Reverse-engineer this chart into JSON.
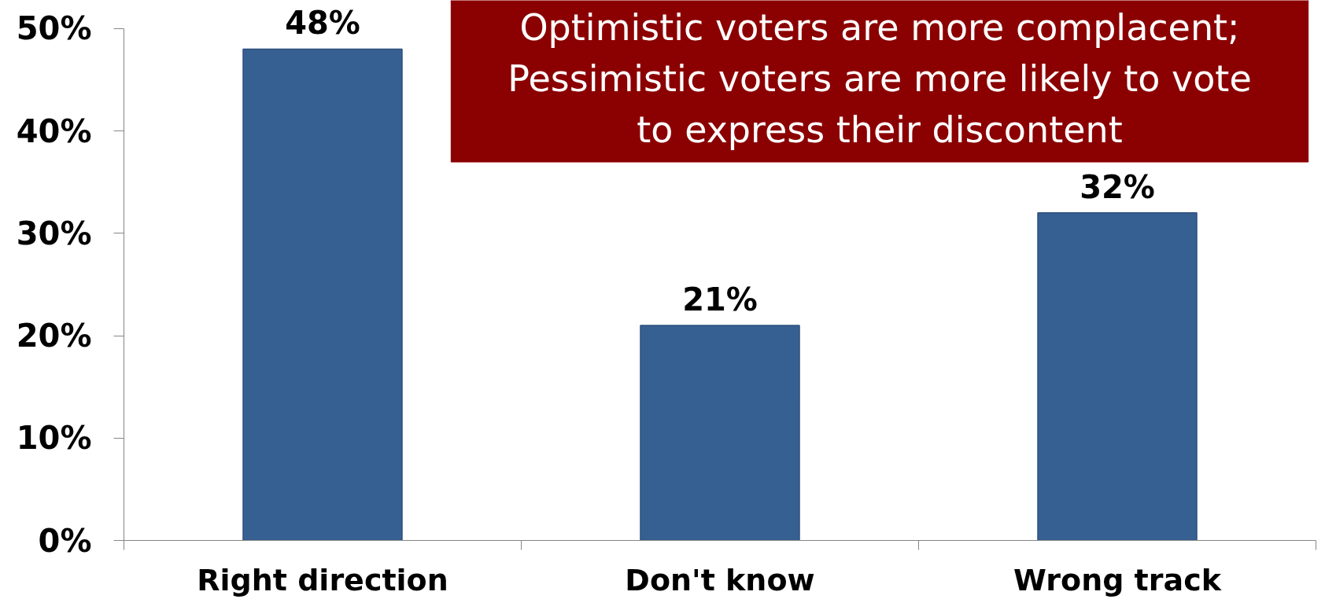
{
  "chart_data": {
    "type": "bar",
    "categories": [
      "Right direction",
      "Don't know",
      "Wrong track"
    ],
    "values": [
      48,
      21,
      32
    ],
    "color": "#376092",
    "value_labels": [
      "48%",
      "21%",
      "32%"
    ],
    "ylim": [
      0,
      50
    ],
    "yticks": [
      {
        "value": 0,
        "label": "0%"
      },
      {
        "value": 10,
        "label": "10%"
      },
      {
        "value": 20,
        "label": "20%"
      },
      {
        "value": 30,
        "label": "30%"
      },
      {
        "value": 40,
        "label": "40%"
      },
      {
        "value": 50,
        "label": "50%"
      }
    ],
    "annotations": [
      "Optimistic voters are more complacent; Pessimistic voters are more likely to vote to express their discontent"
    ]
  }
}
